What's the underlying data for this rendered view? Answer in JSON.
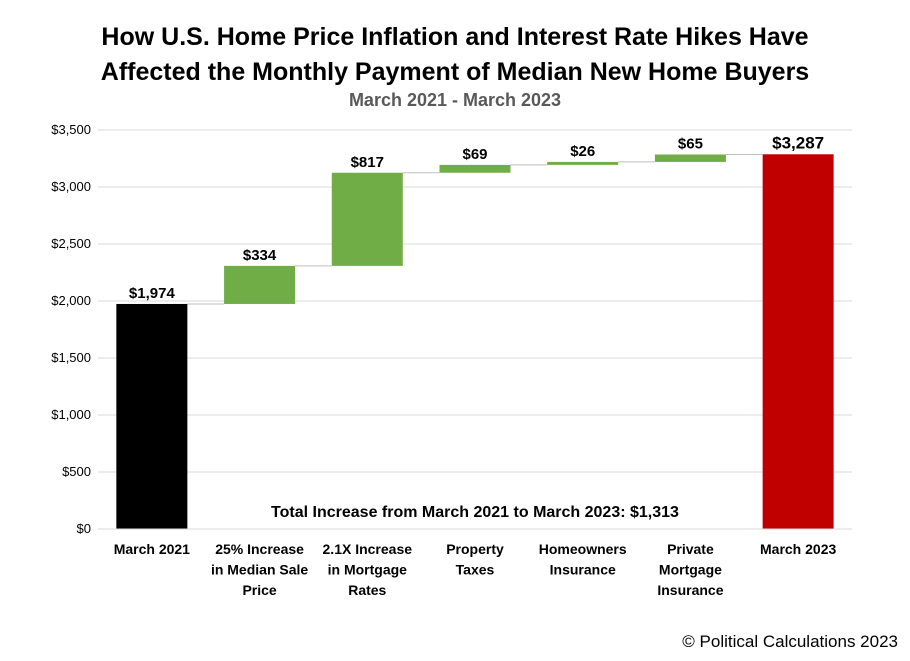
{
  "chart_data": {
    "type": "bar",
    "subtype": "waterfall",
    "title_line1": "How U.S. Home Price Inflation and Interest Rate Hikes Have",
    "title_line2": "Affected the Monthly Payment of Median New Home Buyers",
    "subtitle": "March 2021 - March 2023",
    "xlabel": "",
    "ylabel": "",
    "ylim": [
      0,
      3500
    ],
    "yticks": [
      0,
      500,
      1000,
      1500,
      2000,
      2500,
      3000,
      3500
    ],
    "ytick_labels": [
      "$0",
      "$500",
      "$1,000",
      "$1,500",
      "$2,000",
      "$2,500",
      "$3,000",
      "$3,500"
    ],
    "grid": true,
    "bars": [
      {
        "label": [
          "March 2021"
        ],
        "kind": "total",
        "base": 0,
        "value": 1974,
        "value_label": "$1,974",
        "color": "#000000"
      },
      {
        "label": [
          "25% Increase",
          "in Median Sale",
          "Price"
        ],
        "kind": "increase",
        "base": 1974,
        "value": 334,
        "value_label": "$334",
        "color": "#70ad47"
      },
      {
        "label": [
          "2.1X Increase",
          "in Mortgage",
          "Rates"
        ],
        "kind": "increase",
        "base": 2308,
        "value": 817,
        "value_label": "$817",
        "color": "#70ad47"
      },
      {
        "label": [
          "Property",
          "Taxes"
        ],
        "kind": "increase",
        "base": 3125,
        "value": 69,
        "value_label": "$69",
        "color": "#70ad47"
      },
      {
        "label": [
          "Homeowners",
          "Insurance"
        ],
        "kind": "increase",
        "base": 3194,
        "value": 26,
        "value_label": "$26",
        "color": "#70ad47"
      },
      {
        "label": [
          "Private",
          "Mortgage",
          "Insurance"
        ],
        "kind": "increase",
        "base": 3220,
        "value": 65,
        "value_label": "$65",
        "color": "#70ad47"
      },
      {
        "label": [
          "March 2023"
        ],
        "kind": "total",
        "base": 0,
        "value": 3287,
        "value_label": "$3,287",
        "color": "#c00000"
      }
    ],
    "annotation": "Total Increase from March 2021 to March 2023: $1,313"
  },
  "credit": "© Political Calculations 2023"
}
